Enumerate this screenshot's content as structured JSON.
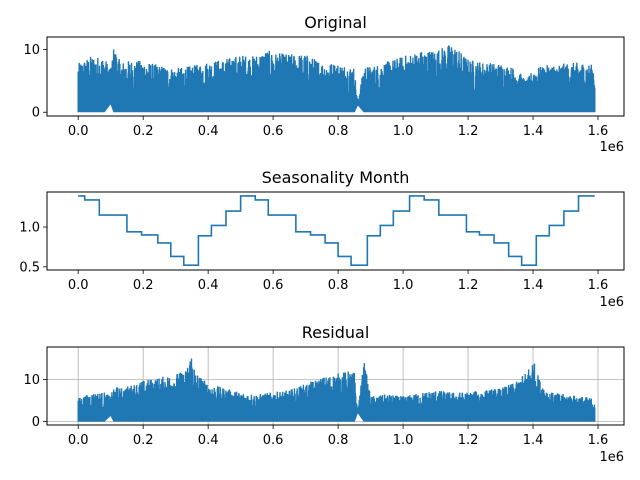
{
  "figure": {
    "background": "#ffffff",
    "line_color": "#1f77b4"
  },
  "chart_data": [
    {
      "type": "line",
      "title": "Original",
      "xlabel": "",
      "ylabel": "",
      "x_offset_label": "1e6",
      "xlim": [
        -96000,
        1680000
      ],
      "ylim": [
        -0.6,
        12.0
      ],
      "x_ticks": [
        0,
        200000,
        400000,
        600000,
        800000,
        1000000,
        1200000,
        1400000
      ],
      "x_tick_labels": [
        "0.0",
        "0.2",
        "0.4",
        "0.6",
        "0.8",
        "1.0",
        "1.2",
        "1.4",
        "1.6"
      ],
      "y_ticks": [
        0,
        10
      ],
      "y_tick_labels": [
        "0",
        "10"
      ],
      "grid": false,
      "envelope": {
        "x": [
          0,
          40000,
          80000,
          100000,
          110000,
          130000,
          160000,
          200000,
          250000,
          300000,
          350000,
          400000,
          450000,
          500000,
          540000,
          560000,
          580000,
          600000,
          650000,
          700000,
          750000,
          800000,
          850000,
          860000,
          880000,
          900000,
          950000,
          1000000,
          1050000,
          1100000,
          1150000,
          1200000,
          1250000,
          1300000,
          1350000,
          1380000,
          1400000,
          1450000,
          1500000,
          1550000,
          1590000
        ],
        "top": [
          7.8,
          9.0,
          8.8,
          7.0,
          10.6,
          8.0,
          8.3,
          8.2,
          7.5,
          7.0,
          7.4,
          8.1,
          8.5,
          9.2,
          9.0,
          9.5,
          10.0,
          9.5,
          9.3,
          9.3,
          8.0,
          7.8,
          7.2,
          1.6,
          7.5,
          7.3,
          8.1,
          9.0,
          9.8,
          10.0,
          11.0,
          8.5,
          8.0,
          7.8,
          7.0,
          5.0,
          7.0,
          7.6,
          7.8,
          8.0,
          7.5
        ],
        "bottom": [
          0.0,
          0.0,
          0.0,
          1.4,
          0.0,
          0.0,
          0.0,
          0.0,
          0.0,
          0.0,
          0.0,
          0.0,
          0.0,
          0.0,
          0.0,
          0.0,
          0.0,
          0.0,
          0.0,
          0.0,
          0.0,
          0.0,
          0.0,
          1.2,
          0.0,
          0.0,
          0.0,
          0.0,
          0.0,
          0.0,
          0.0,
          0.0,
          0.0,
          0.0,
          0.0,
          0.0,
          0.0,
          0.0,
          0.0,
          0.0,
          0.0
        ]
      }
    },
    {
      "type": "line",
      "title": "Seasonality Month",
      "xlabel": "",
      "ylabel": "",
      "x_offset_label": "1e6",
      "xlim": [
        -96000,
        1680000
      ],
      "ylim": [
        0.46,
        1.44
      ],
      "x_ticks": [
        0,
        200000,
        400000,
        600000,
        800000,
        1000000,
        1200000,
        1400000
      ],
      "x_tick_labels": [
        "0.0",
        "0.2",
        "0.4",
        "0.6",
        "0.8",
        "1.0",
        "1.2",
        "1.4",
        "1.6"
      ],
      "y_ticks": [
        0.5,
        1.0
      ],
      "y_tick_labels": [
        "0.5",
        "1.0"
      ],
      "grid": false,
      "steps": {
        "x": [
          0,
          20000,
          65000,
          150000,
          195000,
          245000,
          285000,
          325000,
          370000,
          410000,
          455000,
          500000,
          545000,
          585000,
          670000,
          715000,
          760000,
          800000,
          840000,
          890000,
          930000,
          970000,
          1020000,
          1065000,
          1110000,
          1195000,
          1235000,
          1280000,
          1325000,
          1365000,
          1410000,
          1450000,
          1495000,
          1540000,
          1590000
        ],
        "y": [
          1.39,
          1.34,
          1.15,
          0.94,
          0.9,
          0.8,
          0.63,
          0.52,
          0.89,
          1.02,
          1.2,
          1.39,
          1.34,
          1.15,
          0.94,
          0.9,
          0.8,
          0.63,
          0.52,
          0.89,
          1.02,
          1.2,
          1.39,
          1.34,
          1.15,
          0.94,
          0.9,
          0.8,
          0.63,
          0.52,
          0.89,
          1.02,
          1.2,
          1.39,
          1.39
        ]
      }
    },
    {
      "type": "line",
      "title": "Residual",
      "xlabel": "",
      "ylabel": "",
      "x_offset_label": "1e6",
      "xlim": [
        -96000,
        1680000
      ],
      "ylim": [
        -0.8,
        17.7
      ],
      "x_ticks": [
        0,
        200000,
        400000,
        600000,
        800000,
        1000000,
        1200000,
        1400000
      ],
      "x_tick_labels": [
        "0.0",
        "0.2",
        "0.4",
        "0.6",
        "0.8",
        "1.0",
        "1.2",
        "1.4",
        "1.6"
      ],
      "y_ticks": [
        0,
        10
      ],
      "y_tick_labels": [
        "0",
        "10"
      ],
      "grid": true,
      "envelope": {
        "x": [
          0,
          40000,
          80000,
          100000,
          110000,
          130000,
          160000,
          200000,
          250000,
          300000,
          330000,
          350000,
          360000,
          400000,
          450000,
          500000,
          550000,
          600000,
          650000,
          700000,
          750000,
          800000,
          830000,
          850000,
          860000,
          880000,
          900000,
          950000,
          1000000,
          1050000,
          1100000,
          1150000,
          1200000,
          1250000,
          1300000,
          1350000,
          1380000,
          1400000,
          1420000,
          1450000,
          1500000,
          1550000,
          1590000
        ],
        "top": [
          5.6,
          6.8,
          7.0,
          6.0,
          8.5,
          8.0,
          8.6,
          9.8,
          10.5,
          11.5,
          12.0,
          16.8,
          12.0,
          9.0,
          8.0,
          7.0,
          6.5,
          7.0,
          7.5,
          9.0,
          10.5,
          11.5,
          12.0,
          11.8,
          2.5,
          14.5,
          6.0,
          6.5,
          6.0,
          6.8,
          7.5,
          7.0,
          7.0,
          7.5,
          8.0,
          9.5,
          12.0,
          15.0,
          10.0,
          7.0,
          6.5,
          6.0,
          5.5
        ],
        "bottom": [
          0.0,
          0.0,
          0.0,
          1.5,
          0.0,
          0.0,
          0.0,
          0.0,
          0.0,
          0.0,
          0.0,
          0.0,
          0.0,
          0.0,
          0.0,
          0.0,
          0.0,
          0.0,
          0.0,
          0.0,
          0.0,
          0.0,
          0.0,
          0.0,
          2.2,
          0.0,
          0.0,
          0.0,
          0.0,
          0.0,
          0.0,
          0.0,
          0.0,
          0.0,
          0.0,
          0.0,
          0.0,
          0.0,
          0.0,
          0.0,
          0.0,
          0.0,
          0.0
        ]
      }
    }
  ]
}
